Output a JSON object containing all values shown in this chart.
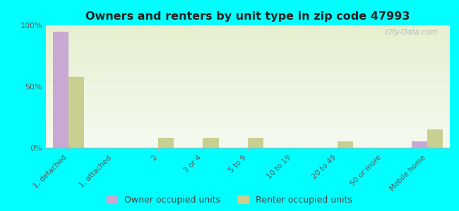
{
  "title": "Owners and renters by unit type in zip code 47993",
  "categories": [
    "1, detached",
    "1, attached",
    "2",
    "3 or 4",
    "5 to 9",
    "10 to 19",
    "20 to 49",
    "50 or more",
    "Mobile home"
  ],
  "owner_values": [
    95,
    0,
    0,
    0,
    0,
    0,
    0,
    0,
    5
  ],
  "renter_values": [
    58,
    0,
    8,
    8,
    8,
    0,
    5,
    0,
    15
  ],
  "owner_color": "#c9a8d4",
  "renter_color": "#c8cf90",
  "background_color": "#00ffff",
  "grad_top": "#e6f0d0",
  "grad_bottom": "#f5faf0",
  "ylim": [
    0,
    100
  ],
  "yticks": [
    0,
    50,
    100
  ],
  "ytick_labels": [
    "0%",
    "50%",
    "100%"
  ],
  "bar_width": 0.35,
  "legend_owner": "Owner occupied units",
  "legend_renter": "Renter occupied units",
  "watermark": "City-Data.com"
}
